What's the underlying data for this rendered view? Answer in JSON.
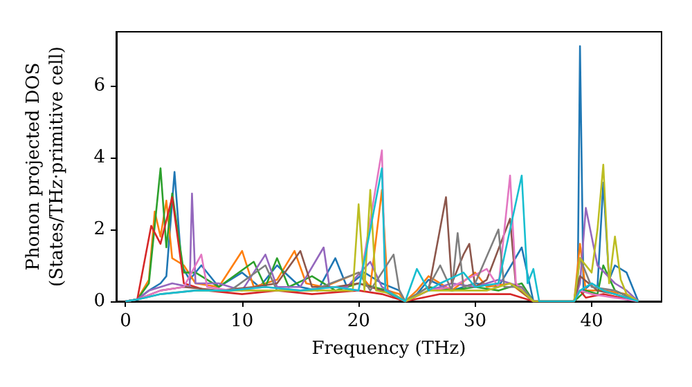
{
  "chart_data": {
    "type": "line",
    "xlabel": "Frequency (THz)",
    "ylabel": "Phonon projected DOS\n(States/THz·primitive cell)",
    "xlim": [
      -0.8,
      46
    ],
    "ylim": [
      0,
      7.5
    ],
    "xticks": [
      0,
      10,
      20,
      30,
      40
    ],
    "yticks": [
      0,
      2,
      4,
      6
    ],
    "grid": false,
    "marker": "none",
    "line_style": "solid",
    "series": [
      {
        "color": "#1f77b4",
        "x": [
          0,
          1,
          2,
          3,
          3.5,
          4.2,
          4.8,
          5.5,
          6.5,
          8,
          10,
          11.5,
          13,
          15,
          16.5,
          18,
          19,
          20.5,
          22,
          23.5,
          24,
          25,
          26,
          28,
          30,
          32,
          34,
          35,
          38.5,
          38.8,
          39,
          39.3,
          40,
          40.5,
          41,
          41.5,
          42,
          43,
          44
        ],
        "values": [
          0,
          0.05,
          0.3,
          0.5,
          0.7,
          3.6,
          1,
          0.6,
          1,
          0.4,
          0.8,
          0.4,
          1,
          0.4,
          0.3,
          1.2,
          0.4,
          0.8,
          0.5,
          0.3,
          0,
          0.2,
          0.6,
          0.3,
          0.5,
          0.4,
          1.5,
          0,
          0,
          0.3,
          7.1,
          0.3,
          0.5,
          0.4,
          3.3,
          0.6,
          1,
          0.8,
          0
        ]
      },
      {
        "color": "#ff7f0e",
        "x": [
          0,
          1,
          2,
          2.5,
          3,
          3.5,
          4,
          5,
          6,
          8,
          10,
          11,
          13,
          14.5,
          15.5,
          17,
          20,
          21,
          22,
          22.5,
          23.5,
          24,
          25,
          26,
          28,
          30,
          31,
          33,
          35,
          38.5,
          39,
          39.5,
          41,
          43,
          44
        ],
        "values": [
          0,
          0.05,
          0.6,
          2.5,
          1.8,
          2.8,
          1.2,
          1,
          0.5,
          0.4,
          1.4,
          0.4,
          0.6,
          1.4,
          0.5,
          0.4,
          0.8,
          0.4,
          3.1,
          0.3,
          0.2,
          0,
          0.3,
          0.7,
          0.3,
          0.8,
          0.4,
          0.5,
          0,
          0,
          1.6,
          0.3,
          0.3,
          0.2,
          0
        ]
      },
      {
        "color": "#2ca02c",
        "x": [
          0,
          1,
          2,
          3,
          3.5,
          4,
          5,
          6,
          8,
          11,
          12,
          13,
          14,
          16,
          18,
          20,
          22.5,
          24,
          26,
          28,
          30,
          32,
          34,
          35,
          38.5,
          39.5,
          40.5,
          41,
          42,
          44
        ],
        "values": [
          0,
          0.05,
          0.5,
          3.7,
          1.5,
          3,
          0.8,
          0.8,
          0.4,
          1.1,
          0.4,
          1.2,
          0.4,
          0.7,
          0.3,
          0.5,
          0.3,
          0,
          0.4,
          0.3,
          0.4,
          0.3,
          0.5,
          0,
          0,
          0.3,
          0.2,
          1,
          0.3,
          0
        ]
      },
      {
        "color": "#d62728",
        "x": [
          0,
          1,
          2.2,
          3,
          4,
          5,
          7,
          10,
          13,
          16,
          20,
          22,
          24,
          27,
          30,
          33,
          35,
          38.5,
          39,
          39.5,
          41,
          44
        ],
        "values": [
          0,
          0.05,
          2.1,
          1.6,
          2.9,
          0.5,
          0.3,
          0.2,
          0.3,
          0.2,
          0.3,
          0.2,
          0,
          0.2,
          0.2,
          0.2,
          0,
          0,
          0.3,
          0.1,
          0.2,
          0
        ]
      },
      {
        "color": "#9467bd",
        "x": [
          0,
          1,
          2,
          4,
          5.5,
          5.7,
          6,
          8,
          10,
          12,
          13,
          15,
          17,
          17.5,
          19,
          21,
          22,
          24,
          26,
          28,
          30,
          32,
          34,
          35,
          38.5,
          39,
          39.5,
          40.5,
          42,
          43,
          44
        ],
        "values": [
          0,
          0.05,
          0.3,
          0.5,
          0.4,
          3,
          0.5,
          0.5,
          0.3,
          1.3,
          0.4,
          0.4,
          1.5,
          0.4,
          0.4,
          1.1,
          0.4,
          0,
          0.3,
          0.5,
          0.4,
          0.6,
          0.4,
          0,
          0,
          0.5,
          2.6,
          1,
          0.5,
          0.3,
          0
        ]
      },
      {
        "color": "#8c564b",
        "x": [
          0,
          1,
          3,
          5,
          8,
          11,
          13,
          15,
          16,
          18,
          20,
          22,
          24,
          26,
          27.5,
          28,
          29,
          29.5,
          30,
          31,
          33,
          33.5,
          35,
          38.5,
          39,
          40.5,
          42,
          44
        ],
        "values": [
          0,
          0.05,
          0.3,
          0.4,
          0.3,
          0.4,
          0.5,
          1.4,
          0.4,
          0.4,
          0.5,
          0.3,
          0,
          0.3,
          2.9,
          0.5,
          1.3,
          1.6,
          0.4,
          0.6,
          2.3,
          0.4,
          0,
          0,
          0.7,
          0.3,
          0.2,
          0
        ]
      },
      {
        "color": "#e377c2",
        "x": [
          0,
          1,
          3,
          5,
          6.5,
          7,
          9,
          12,
          15,
          18,
          20,
          22,
          22.3,
          24,
          26,
          28,
          31,
          32,
          33,
          33.5,
          35,
          38.5,
          39,
          40,
          44
        ],
        "values": [
          0,
          0.05,
          0.3,
          0.4,
          1.3,
          0.4,
          0.3,
          0.4,
          0.3,
          0.4,
          0.3,
          4.2,
          0.3,
          0,
          0.3,
          0.4,
          0.9,
          0.4,
          3.5,
          0.5,
          0,
          0,
          0.3,
          0.2,
          0
        ]
      },
      {
        "color": "#7f7f7f",
        "x": [
          0,
          1,
          3,
          6,
          9,
          12,
          13,
          16,
          20,
          21,
          23,
          23.5,
          24,
          26,
          27,
          28,
          28.5,
          29,
          30,
          32,
          32.5,
          34,
          35,
          38.5,
          39,
          40,
          42,
          44
        ],
        "values": [
          0,
          0.05,
          0.2,
          0.3,
          0.3,
          1,
          0.3,
          0.3,
          0.8,
          0.3,
          1.3,
          0.3,
          0,
          0.4,
          1,
          0.3,
          1.9,
          0.4,
          0.5,
          2,
          0.4,
          0.4,
          0,
          0,
          1.2,
          0.4,
          0.3,
          0
        ]
      },
      {
        "color": "#bcbd22",
        "x": [
          6,
          9,
          12,
          15,
          18,
          19.5,
          20,
          20.5,
          21,
          21.5,
          23,
          24,
          26,
          29,
          31,
          33,
          34,
          35,
          38.5,
          39,
          40,
          40.5,
          41,
          41.5,
          42,
          42.5,
          43,
          44
        ],
        "values": [
          0.3,
          0.3,
          0.3,
          0.3,
          0.3,
          0.3,
          2.7,
          0.3,
          3.1,
          0.3,
          0.2,
          0,
          0.3,
          0.3,
          0.3,
          0.5,
          0.3,
          0,
          0,
          1.2,
          0.8,
          2,
          3.8,
          0.5,
          1.8,
          0.6,
          0.2,
          0
        ]
      },
      {
        "color": "#17becf",
        "x": [
          0,
          1,
          3,
          6,
          9,
          12,
          15,
          18,
          20,
          22,
          22.3,
          24,
          25,
          26,
          27,
          29,
          30,
          32,
          34,
          34.5,
          35,
          35.5,
          38.5,
          39,
          40,
          41,
          44
        ],
        "values": [
          0,
          0.05,
          0.2,
          0.3,
          0.3,
          0.4,
          0.3,
          0.4,
          0.3,
          3.7,
          0.3,
          0,
          0.9,
          0.3,
          0.5,
          0.8,
          0.4,
          0.5,
          3.5,
          0.5,
          0.9,
          0,
          0,
          0.3,
          0.5,
          0.3,
          0
        ]
      }
    ]
  }
}
